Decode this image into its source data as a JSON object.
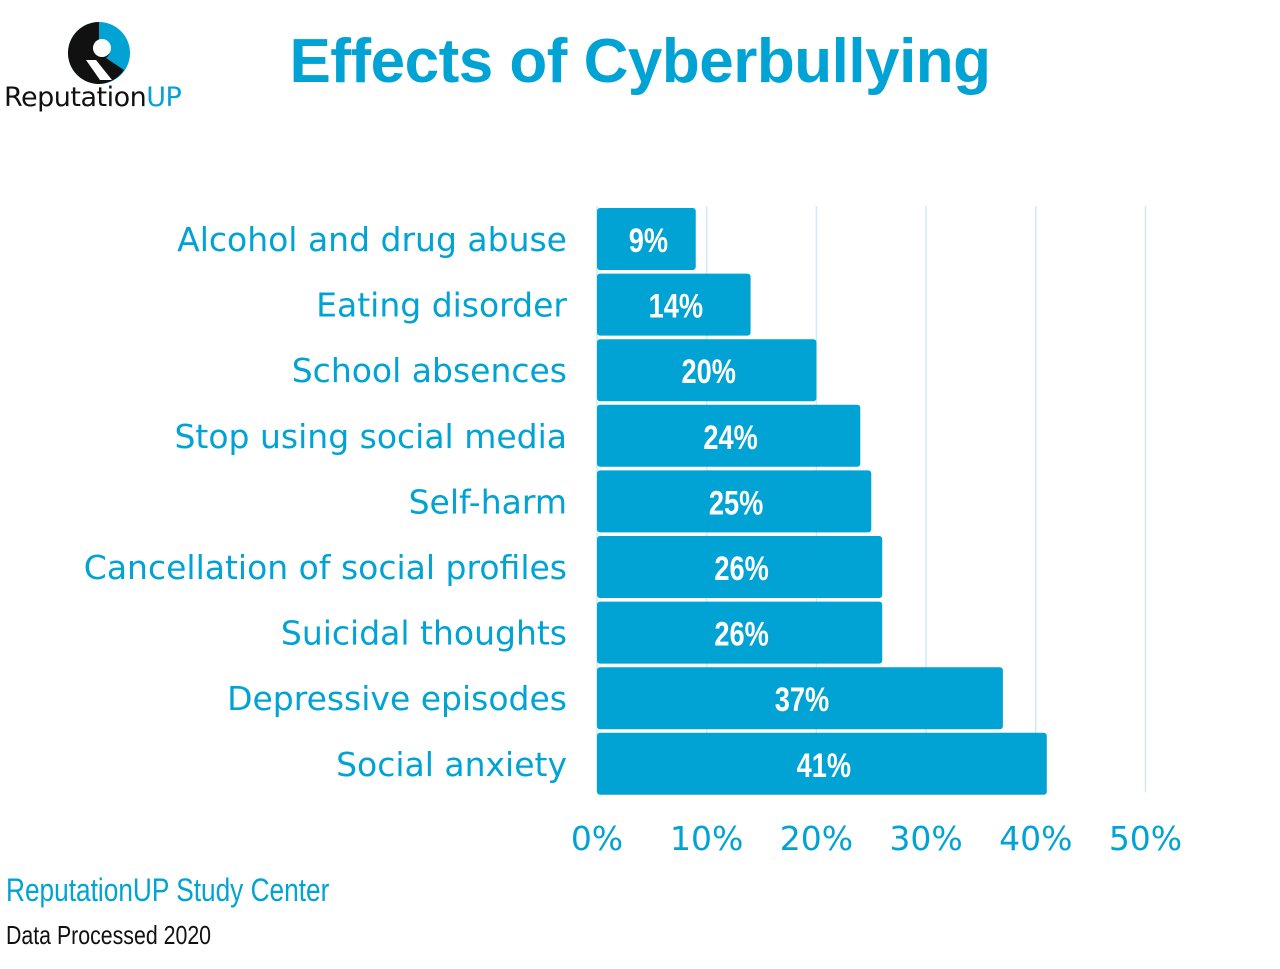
{
  "brand": {
    "name_main": "Reputation",
    "name_accent": "UP",
    "accent_color": "#00a3d4",
    "icon": "reputationup-logo-icon"
  },
  "title": "Effects of Cyberbullying",
  "footer": {
    "source": "ReputationUP Study Center",
    "note": "Data Processed 2020"
  },
  "chart_data": {
    "type": "bar",
    "orientation": "horizontal",
    "title": "Effects of Cyberbullying",
    "categories": [
      "Alcohol and drug abuse",
      "Eating disorder",
      "School absences",
      "Stop using social media",
      "Self-harm",
      "Cancellation of social profiles",
      "Suicidal thoughts",
      "Depressive episodes",
      "Social anxiety"
    ],
    "values": [
      9,
      14,
      20,
      24,
      25,
      26,
      26,
      37,
      41
    ],
    "data_labels": [
      "9%",
      "14%",
      "20%",
      "24%",
      "25%",
      "26%",
      "26%",
      "37%",
      "41%"
    ],
    "xlim": [
      0,
      50
    ],
    "x_ticks": [
      0,
      10,
      20,
      30,
      40,
      50
    ],
    "x_tick_labels": [
      "0%",
      "10%",
      "20%",
      "30%",
      "40%",
      "50%"
    ],
    "grid": true,
    "bar_color": "#00a3d4",
    "label_color": "#00a3d4",
    "grid_color": "#cfe9f5"
  }
}
